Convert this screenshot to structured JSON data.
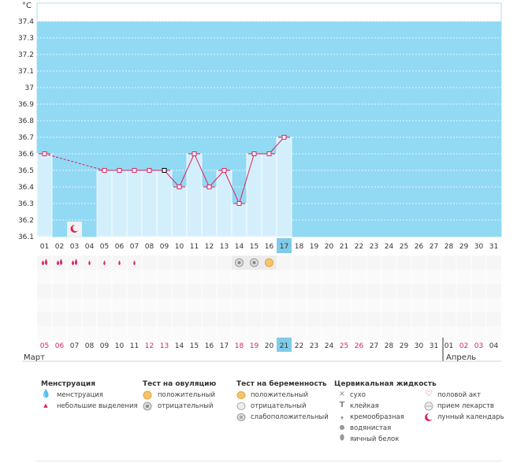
{
  "chart_data": {
    "type": "line",
    "ylabel": "°C",
    "ylim": [
      36.1,
      37.5
    ],
    "yticks": [
      "37.4",
      "37.3",
      "37.2",
      "37.1",
      "37",
      "36.9",
      "36.8",
      "36.7",
      "36.6",
      "36.5",
      "36.4",
      "36.3",
      "36.2",
      "36.1"
    ],
    "cycle_days": [
      "01",
      "02",
      "03",
      "04",
      "05",
      "06",
      "07",
      "08",
      "09",
      "10",
      "11",
      "12",
      "13",
      "14",
      "15",
      "16",
      "17",
      "18",
      "19",
      "20",
      "21",
      "22",
      "23",
      "24",
      "25",
      "26",
      "27",
      "28",
      "29",
      "30",
      "31"
    ],
    "current_day": "17",
    "temperatures": [
      {
        "day": 1,
        "value": 36.6
      },
      {
        "day": 5,
        "value": 36.5
      },
      {
        "day": 6,
        "value": 36.5
      },
      {
        "day": 7,
        "value": 36.5
      },
      {
        "day": 8,
        "value": 36.5
      },
      {
        "day": 9,
        "value": 36.5
      },
      {
        "day": 10,
        "value": 36.4
      },
      {
        "day": 11,
        "value": 36.6
      },
      {
        "day": 12,
        "value": 36.4
      },
      {
        "day": 13,
        "value": 36.5
      },
      {
        "day": 14,
        "value": 36.3
      },
      {
        "day": 15,
        "value": 36.6
      },
      {
        "day": 16,
        "value": 36.6
      },
      {
        "day": 17,
        "value": 36.7
      }
    ],
    "dashed_gap": [
      1,
      5
    ],
    "lunar_day": 3,
    "dates": [
      "05",
      "06",
      "07",
      "08",
      "09",
      "10",
      "11",
      "12",
      "13",
      "14",
      "15",
      "16",
      "17",
      "18",
      "19",
      "20",
      "21",
      "22",
      "23",
      "24",
      "25",
      "26",
      "27",
      "28",
      "29",
      "30",
      "31",
      "01",
      "02",
      "03",
      "04"
    ],
    "red_dates_index": [
      0,
      1,
      7,
      8,
      13,
      14,
      20,
      21,
      28,
      29
    ],
    "today_date_index": 16,
    "month_start": "Март",
    "month_next": "Апрель",
    "month_break_index": 27,
    "menstruation_days": [
      {
        "day": 1,
        "type": "heavy"
      },
      {
        "day": 2,
        "type": "heavy"
      },
      {
        "day": 3,
        "type": "heavy"
      },
      {
        "day": 4,
        "type": "light"
      },
      {
        "day": 5,
        "type": "light"
      },
      {
        "day": 6,
        "type": "light"
      },
      {
        "day": 7,
        "type": "light"
      }
    ],
    "ovulation_tests": [
      {
        "day": 14,
        "result": "negative"
      },
      {
        "day": 15,
        "result": "negative"
      },
      {
        "day": 16,
        "result": "positive"
      }
    ]
  },
  "colors": {
    "plot_bg": "#92d9f4",
    "bar_fill": "#d4effc",
    "line": "#d8245f",
    "highlight": "#7fcbe9",
    "red_date": "#d8245f"
  },
  "legend": {
    "menstruation": {
      "title": "Менструация",
      "items": [
        "менструация",
        "небольшие выделения"
      ]
    },
    "ovulation": {
      "title": "Тест на овуляцию",
      "items": [
        "положительный",
        "отрицательный"
      ]
    },
    "pregnancy": {
      "title": "Тест на беременность",
      "items": [
        "положительный",
        "отрицательный",
        "слабоположительный"
      ]
    },
    "cervical": {
      "title": "Цервикальная жидкость",
      "items": [
        "сухо",
        "клейкая",
        "кремообразная",
        "водянистая",
        "яичный белок"
      ]
    },
    "other": {
      "items": [
        "половой акт",
        "прием лекарств",
        "лунный календарь"
      ]
    }
  }
}
